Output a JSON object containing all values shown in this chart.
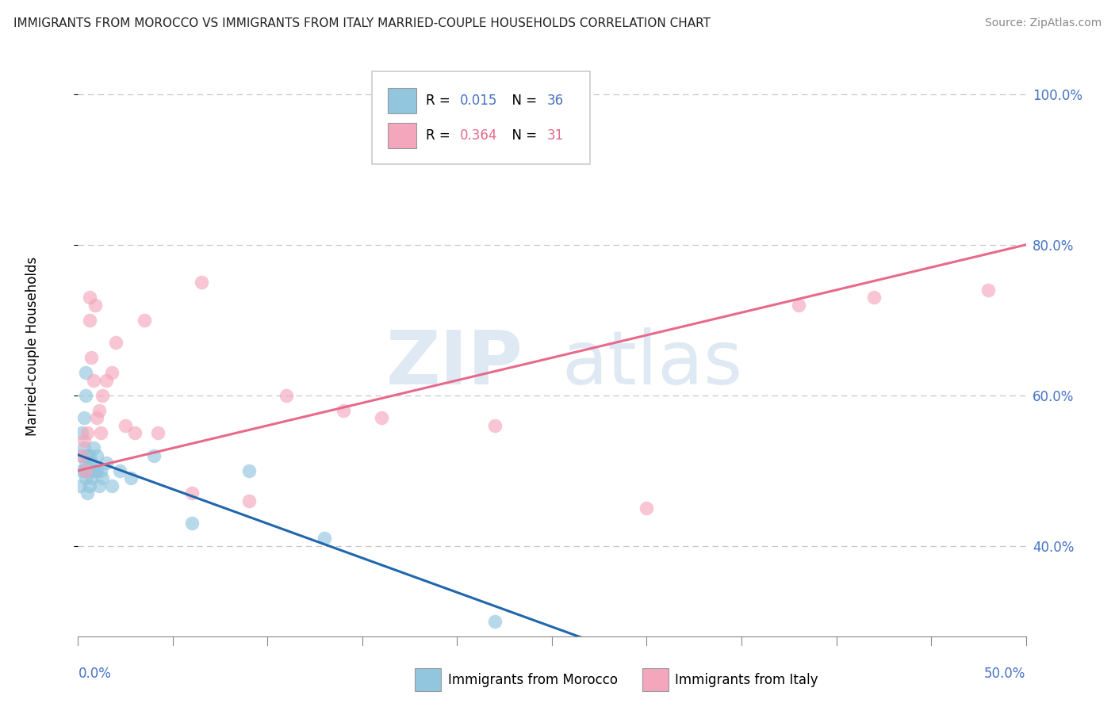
{
  "title": "IMMIGRANTS FROM MOROCCO VS IMMIGRANTS FROM ITALY MARRIED-COUPLE HOUSEHOLDS CORRELATION CHART",
  "source": "Source: ZipAtlas.com",
  "ylabel": "Married-couple Households",
  "xlim": [
    0.0,
    0.5
  ],
  "ylim": [
    0.28,
    1.05
  ],
  "yticks": [
    0.4,
    0.6,
    0.8,
    1.0
  ],
  "ytick_labels": [
    "40.0%",
    "60.0%",
    "80.0%",
    "100.0%"
  ],
  "legend_R_morocco": "0.015",
  "legend_N_morocco": "36",
  "legend_R_italy": "0.364",
  "legend_N_italy": "31",
  "morocco_color": "#92c5de",
  "italy_color": "#f4a6bc",
  "morocco_line_color": "#2166ac",
  "italy_line_color": "#e8698a",
  "watermark_zip": "ZIP",
  "watermark_atlas": "atlas",
  "background_color": "#ffffff",
  "grid_color": "#c8c8c8",
  "morocco_x": [
    0.001,
    0.002,
    0.002,
    0.002,
    0.003,
    0.003,
    0.003,
    0.004,
    0.004,
    0.004,
    0.004,
    0.005,
    0.005,
    0.005,
    0.006,
    0.006,
    0.006,
    0.007,
    0.007,
    0.008,
    0.008,
    0.009,
    0.01,
    0.01,
    0.011,
    0.012,
    0.013,
    0.015,
    0.018,
    0.022,
    0.028,
    0.04,
    0.06,
    0.09,
    0.13,
    0.22
  ],
  "morocco_y": [
    0.48,
    0.52,
    0.5,
    0.55,
    0.53,
    0.57,
    0.5,
    0.6,
    0.49,
    0.51,
    0.63,
    0.47,
    0.52,
    0.5,
    0.51,
    0.48,
    0.52,
    0.49,
    0.51,
    0.5,
    0.53,
    0.5,
    0.5,
    0.52,
    0.48,
    0.5,
    0.49,
    0.51,
    0.48,
    0.5,
    0.49,
    0.52,
    0.43,
    0.5,
    0.41,
    0.3
  ],
  "italy_x": [
    0.002,
    0.003,
    0.004,
    0.005,
    0.006,
    0.006,
    0.007,
    0.008,
    0.009,
    0.01,
    0.011,
    0.012,
    0.013,
    0.015,
    0.018,
    0.02,
    0.025,
    0.03,
    0.035,
    0.042,
    0.06,
    0.065,
    0.09,
    0.11,
    0.14,
    0.16,
    0.22,
    0.3,
    0.38,
    0.42,
    0.48
  ],
  "italy_y": [
    0.52,
    0.54,
    0.5,
    0.55,
    0.7,
    0.73,
    0.65,
    0.62,
    0.72,
    0.57,
    0.58,
    0.55,
    0.6,
    0.62,
    0.63,
    0.67,
    0.56,
    0.55,
    0.7,
    0.55,
    0.47,
    0.75,
    0.46,
    0.6,
    0.58,
    0.57,
    0.56,
    0.45,
    0.72,
    0.73,
    0.74
  ],
  "morocco_line_solid_end": 0.27,
  "morocco_line_end": 0.5,
  "morocco_line_y": 0.5,
  "italy_line_x0": 0.0,
  "italy_line_x1": 0.5,
  "italy_line_y0": 0.5,
  "italy_line_y1": 0.8
}
